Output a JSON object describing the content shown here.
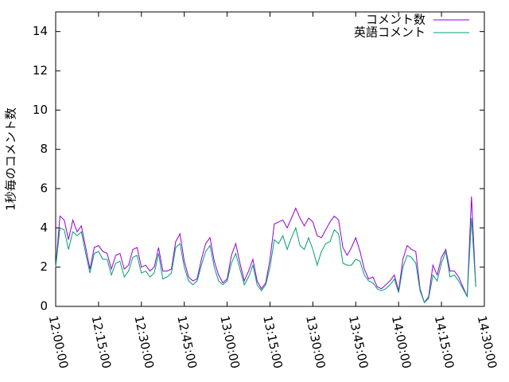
{
  "chart_data": {
    "type": "line",
    "ylabel": "1秒毎のコメント数",
    "x": [
      "12:00:00",
      "12:01:30",
      "12:03:00",
      "12:04:30",
      "12:06:00",
      "12:07:30",
      "12:09:00",
      "12:10:30",
      "12:12:00",
      "12:13:30",
      "12:15:00",
      "12:16:30",
      "12:18:00",
      "12:19:30",
      "12:21:00",
      "12:22:30",
      "12:24:00",
      "12:25:30",
      "12:27:00",
      "12:28:30",
      "12:30:00",
      "12:31:30",
      "12:33:00",
      "12:34:30",
      "12:36:00",
      "12:37:30",
      "12:39:00",
      "12:40:30",
      "12:42:00",
      "12:43:30",
      "12:45:00",
      "12:46:30",
      "12:48:00",
      "12:49:30",
      "12:51:00",
      "12:52:30",
      "12:54:00",
      "12:55:30",
      "12:57:00",
      "12:58:30",
      "13:00:00",
      "13:01:30",
      "13:03:00",
      "13:04:30",
      "13:06:00",
      "13:07:30",
      "13:09:00",
      "13:10:30",
      "13:12:00",
      "13:13:30",
      "13:15:00",
      "13:16:30",
      "13:18:00",
      "13:19:30",
      "13:21:00",
      "13:22:30",
      "13:24:00",
      "13:25:30",
      "13:27:00",
      "13:28:30",
      "13:30:00",
      "13:31:30",
      "13:33:00",
      "13:34:30",
      "13:36:00",
      "13:37:30",
      "13:39:00",
      "13:40:30",
      "13:42:00",
      "13:43:30",
      "13:45:00",
      "13:46:30",
      "13:48:00",
      "13:49:30",
      "13:51:00",
      "13:52:30",
      "13:54:00",
      "13:55:30",
      "13:57:00",
      "13:58:30",
      "14:00:00",
      "14:01:30",
      "14:03:00",
      "14:04:30",
      "14:06:00",
      "14:07:30",
      "14:09:00",
      "14:10:30",
      "14:12:00",
      "14:13:30",
      "14:15:00",
      "14:16:30",
      "14:18:00",
      "14:19:30",
      "14:21:00",
      "14:22:30",
      "14:24:00",
      "14:25:30",
      "14:27:00"
    ],
    "series": [
      {
        "name": "コメント数",
        "color": "#9400d3",
        "values": [
          2.0,
          4.6,
          4.4,
          3.4,
          4.4,
          3.8,
          4.1,
          3.0,
          1.9,
          3.0,
          3.1,
          2.8,
          2.7,
          1.9,
          2.6,
          2.7,
          1.9,
          2.1,
          2.9,
          3.0,
          2.0,
          2.1,
          1.8,
          2.0,
          3.0,
          1.8,
          1.8,
          1.9,
          3.3,
          3.7,
          2.3,
          1.5,
          1.3,
          1.4,
          2.4,
          3.2,
          3.5,
          2.3,
          1.6,
          1.2,
          1.4,
          2.6,
          3.2,
          2.2,
          1.3,
          1.8,
          2.4,
          1.3,
          0.9,
          1.2,
          2.4,
          4.2,
          4.3,
          4.4,
          4.0,
          4.5,
          5.0,
          4.5,
          4.1,
          4.5,
          4.3,
          3.6,
          3.5,
          3.9,
          4.3,
          4.6,
          4.4,
          3.0,
          2.6,
          3.0,
          3.5,
          2.8,
          1.9,
          1.4,
          1.5,
          1.0,
          0.9,
          1.1,
          1.3,
          1.6,
          0.8,
          2.4,
          3.1,
          2.9,
          2.8,
          0.9,
          0.2,
          0.5,
          2.1,
          1.6,
          2.5,
          2.9,
          1.8,
          1.8,
          1.5,
          1.0,
          0.5,
          5.6,
          1.0
        ]
      },
      {
        "name": "英語コメント",
        "color": "#009e73",
        "values": [
          2.0,
          4.0,
          3.9,
          2.9,
          3.8,
          3.6,
          3.8,
          2.7,
          1.7,
          2.7,
          2.8,
          2.4,
          2.4,
          1.6,
          2.2,
          2.3,
          1.5,
          1.8,
          2.5,
          2.6,
          1.7,
          1.8,
          1.5,
          1.7,
          2.7,
          1.4,
          1.5,
          1.7,
          3.0,
          3.2,
          2.0,
          1.3,
          1.1,
          1.3,
          2.1,
          2.8,
          3.1,
          2.0,
          1.3,
          1.1,
          1.3,
          2.2,
          2.7,
          1.9,
          1.1,
          1.5,
          2.1,
          1.1,
          0.8,
          1.1,
          2.0,
          3.4,
          3.2,
          3.6,
          2.9,
          3.5,
          4.0,
          3.1,
          2.9,
          3.5,
          2.9,
          2.1,
          2.8,
          3.2,
          3.3,
          3.9,
          3.7,
          2.2,
          2.1,
          2.1,
          2.4,
          2.3,
          1.6,
          1.3,
          1.2,
          0.9,
          0.8,
          0.9,
          1.1,
          1.4,
          0.7,
          2.0,
          2.6,
          2.5,
          2.2,
          0.8,
          0.2,
          0.4,
          1.6,
          1.3,
          2.2,
          2.8,
          1.5,
          1.6,
          1.3,
          0.9,
          0.5,
          4.5,
          1.0
        ]
      }
    ],
    "xlim": [
      "12:00:00",
      "14:30:00"
    ],
    "xticks": [
      "12:00:00",
      "12:15:00",
      "12:30:00",
      "12:45:00",
      "13:00:00",
      "13:15:00",
      "13:30:00",
      "13:45:00",
      "14:00:00",
      "14:15:00",
      "14:30:00"
    ],
    "ylim": [
      0,
      15
    ],
    "yticks": [
      0,
      2,
      4,
      6,
      8,
      10,
      12,
      14
    ],
    "legend": "top-right"
  }
}
